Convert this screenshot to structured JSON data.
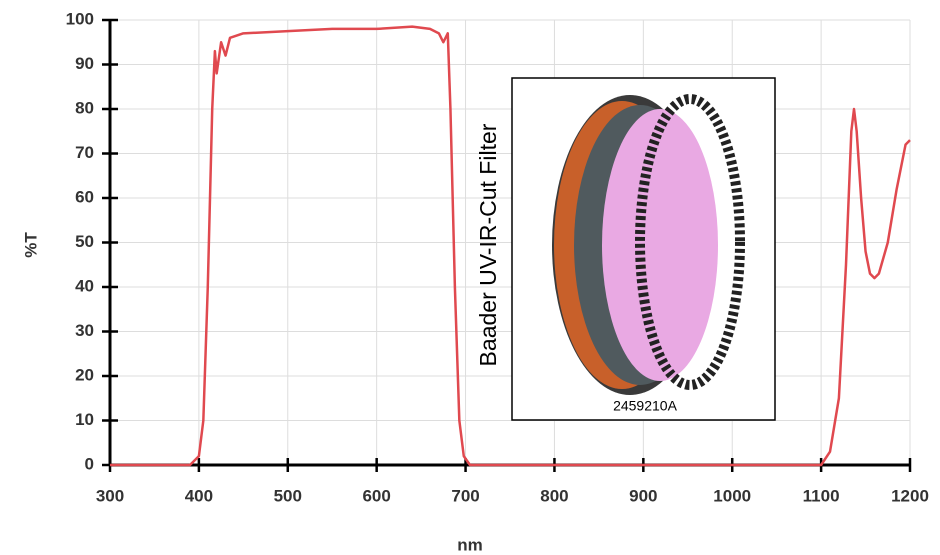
{
  "chart_data": {
    "type": "line",
    "xlabel": "nm",
    "ylabel": "%T",
    "x": [
      300,
      390,
      400,
      405,
      410,
      415,
      418,
      420,
      425,
      430,
      435,
      450,
      500,
      550,
      600,
      640,
      660,
      670,
      675,
      680,
      683,
      688,
      693,
      698,
      705,
      1100,
      1110,
      1120,
      1128,
      1134,
      1137,
      1140,
      1145,
      1150,
      1155,
      1160,
      1165,
      1175,
      1185,
      1195,
      1200
    ],
    "series": [
      {
        "name": "%T",
        "color": "#e0494f",
        "values": [
          0,
          0,
          2,
          10,
          40,
          80,
          93,
          88,
          95,
          92,
          96,
          97,
          97.5,
          98,
          98,
          98.5,
          98,
          97,
          95,
          97,
          80,
          40,
          10,
          2,
          0,
          0,
          3,
          15,
          45,
          75,
          80,
          75,
          60,
          48,
          43,
          42,
          43,
          50,
          62,
          72,
          73
        ]
      }
    ],
    "xlim": [
      300,
      1200
    ],
    "xticks": [
      300,
      400,
      500,
      600,
      700,
      800,
      900,
      1000,
      1100,
      1200
    ],
    "ylim": [
      0,
      100
    ],
    "yticks": [
      0,
      10,
      20,
      30,
      40,
      50,
      60,
      70,
      80,
      90,
      100
    ],
    "grid": true,
    "annotations": [
      {
        "text": "Baader UV-IR-Cut Filter"
      },
      {
        "text": "2459210A"
      }
    ]
  }
}
